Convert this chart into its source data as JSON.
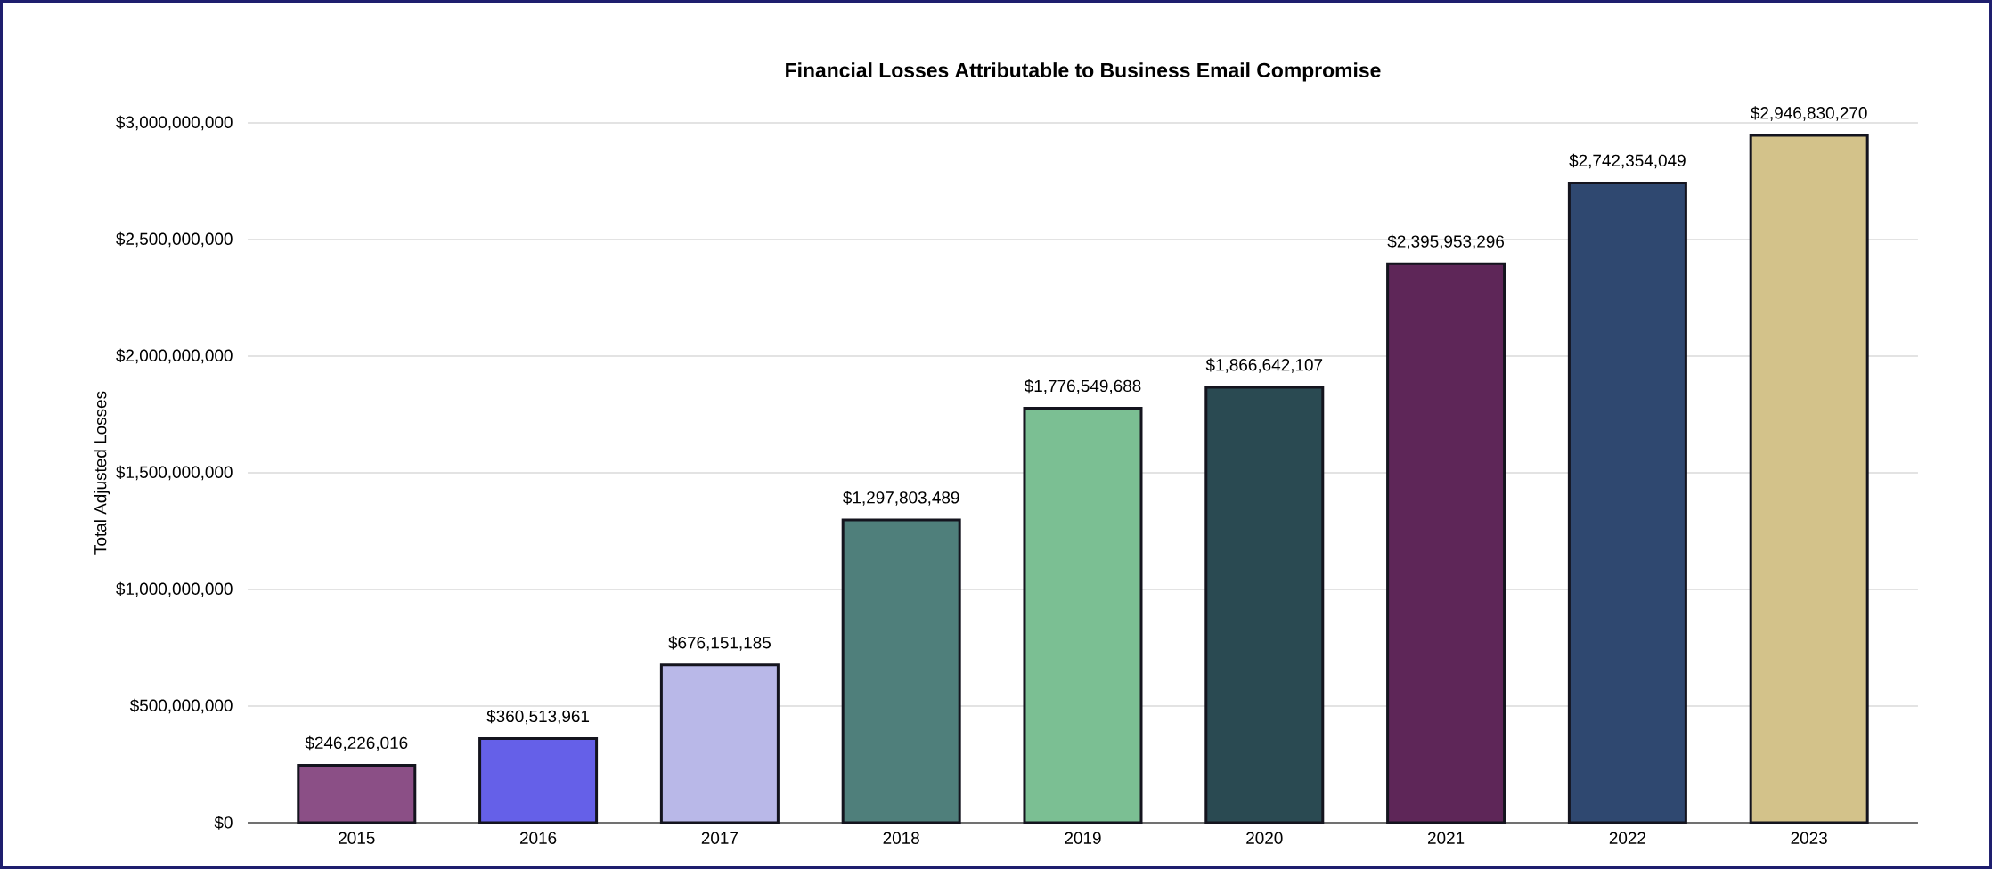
{
  "chart_data": {
    "type": "bar",
    "title": "Financial Losses Attributable to Business Email Compromise",
    "ylabel": "Total Adjusted Losses",
    "categories": [
      "2015",
      "2016",
      "2017",
      "2018",
      "2019",
      "2020",
      "2021",
      "2022",
      "2023"
    ],
    "values": [
      246226016,
      360513961,
      676151185,
      1297803489,
      1776549688,
      1866642107,
      2395953296,
      2742354049,
      2946830270
    ],
    "value_labels": [
      "$246,226,016",
      "$360,513,961",
      "$676,151,185",
      "$1,297,803,489",
      "$1,776,549,688",
      "$1,866,642,107",
      "$2,395,953,296",
      "$2,742,354,049",
      "$2,946,830,270"
    ],
    "colors": [
      "#8b4f86",
      "#6560e8",
      "#b9b8e8",
      "#4f7f7b",
      "#7bbf93",
      "#2a4a52",
      "#5e2658",
      "#2f4870",
      "#d3c28a"
    ],
    "ylim": [
      0,
      3000000000
    ],
    "yticks": [
      {
        "value": 0,
        "label": "$0"
      },
      {
        "value": 500000000,
        "label": "$500,000,000"
      },
      {
        "value": 1000000000,
        "label": "$1,000,000,000"
      },
      {
        "value": 1500000000,
        "label": "$1,500,000,000"
      },
      {
        "value": 2000000000,
        "label": "$2,000,000,000"
      },
      {
        "value": 2500000000,
        "label": "$2,500,000,000"
      },
      {
        "value": 3000000000,
        "label": "$3,000,000,000"
      }
    ],
    "grid": "y"
  }
}
